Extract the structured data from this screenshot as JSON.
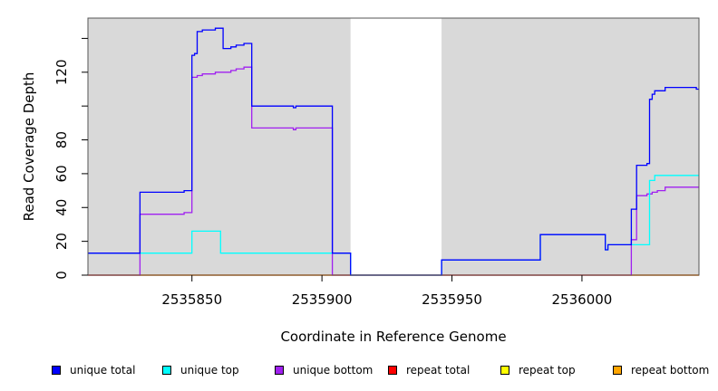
{
  "chart_data": {
    "type": "line",
    "title": "",
    "xlabel": "Coordinate in Reference Genome",
    "ylabel": "Read Coverage Depth",
    "xlim": [
      2535810,
      2536045
    ],
    "ylim": [
      0,
      152
    ],
    "x_ticks": [
      2535850,
      2535900,
      2535950,
      2536000
    ],
    "x_tick_labels": [
      "2535850",
      "2535900",
      "2535950",
      "2536000"
    ],
    "y_ticks": [
      0,
      20,
      40,
      60,
      80,
      100,
      120,
      140
    ],
    "y_tick_labels": [
      "0",
      "20",
      "40",
      "60",
      "80",
      "",
      "120",
      ""
    ],
    "background_regions": [
      {
        "from": 2535810,
        "to": 2535911,
        "color": "#d9d9d9"
      },
      {
        "from": 2535946,
        "to": 2536045,
        "color": "#d9d9d9"
      }
    ],
    "series": [
      {
        "name": "unique total",
        "color": "#0000ff",
        "points": [
          [
            2535810,
            13
          ],
          [
            2535830,
            13
          ],
          [
            2535830,
            49
          ],
          [
            2535847,
            49
          ],
          [
            2535847,
            50
          ],
          [
            2535850,
            50
          ],
          [
            2535850,
            130
          ],
          [
            2535851,
            130
          ],
          [
            2535851,
            131
          ],
          [
            2535852,
            131
          ],
          [
            2535852,
            144
          ],
          [
            2535854,
            144
          ],
          [
            2535854,
            145
          ],
          [
            2535859,
            145
          ],
          [
            2535859,
            146
          ],
          [
            2535862,
            146
          ],
          [
            2535862,
            134
          ],
          [
            2535865,
            134
          ],
          [
            2535865,
            135
          ],
          [
            2535867,
            135
          ],
          [
            2535867,
            136
          ],
          [
            2535870,
            136
          ],
          [
            2535870,
            137
          ],
          [
            2535873,
            137
          ],
          [
            2535873,
            100
          ],
          [
            2535889,
            100
          ],
          [
            2535889,
            99
          ],
          [
            2535890,
            99
          ],
          [
            2535890,
            100
          ],
          [
            2535904,
            100
          ],
          [
            2535904,
            13
          ],
          [
            2535911,
            13
          ],
          [
            2535911,
            0
          ],
          [
            2535946,
            0
          ],
          [
            2535946,
            9
          ],
          [
            2535984,
            9
          ],
          [
            2535984,
            24
          ],
          [
            2536009,
            24
          ],
          [
            2536009,
            15
          ],
          [
            2536010,
            15
          ],
          [
            2536010,
            18
          ],
          [
            2536019,
            18
          ],
          [
            2536019,
            39
          ],
          [
            2536021,
            39
          ],
          [
            2536021,
            65
          ],
          [
            2536025,
            65
          ],
          [
            2536025,
            66
          ],
          [
            2536026,
            66
          ],
          [
            2536026,
            104
          ],
          [
            2536027,
            104
          ],
          [
            2536027,
            107
          ],
          [
            2536028,
            107
          ],
          [
            2536028,
            109
          ],
          [
            2536032,
            109
          ],
          [
            2536032,
            111
          ],
          [
            2536044,
            111
          ],
          [
            2536044,
            110
          ],
          [
            2536045,
            110
          ]
        ]
      },
      {
        "name": "unique top",
        "color": "#00ffff",
        "points": [
          [
            2535810,
            13
          ],
          [
            2535850,
            13
          ],
          [
            2535850,
            26
          ],
          [
            2535861,
            26
          ],
          [
            2535861,
            13
          ],
          [
            2535904,
            13
          ],
          [
            2535904,
            13
          ],
          [
            2535911,
            13
          ],
          [
            2535911,
            0
          ],
          [
            2535946,
            0
          ],
          [
            2535946,
            9
          ],
          [
            2535984,
            9
          ],
          [
            2535984,
            24
          ],
          [
            2536009,
            24
          ],
          [
            2536009,
            15
          ],
          [
            2536010,
            15
          ],
          [
            2536010,
            18
          ],
          [
            2536026,
            18
          ],
          [
            2536026,
            56
          ],
          [
            2536028,
            56
          ],
          [
            2536028,
            59
          ],
          [
            2536045,
            59
          ]
        ]
      },
      {
        "name": "unique bottom",
        "color": "#a020f0",
        "points": [
          [
            2535810,
            0
          ],
          [
            2535830,
            0
          ],
          [
            2535830,
            36
          ],
          [
            2535847,
            36
          ],
          [
            2535847,
            37
          ],
          [
            2535850,
            37
          ],
          [
            2535850,
            117
          ],
          [
            2535852,
            117
          ],
          [
            2535852,
            118
          ],
          [
            2535854,
            118
          ],
          [
            2535854,
            119
          ],
          [
            2535859,
            119
          ],
          [
            2535859,
            120
          ],
          [
            2535865,
            120
          ],
          [
            2535865,
            121
          ],
          [
            2535867,
            121
          ],
          [
            2535867,
            122
          ],
          [
            2535870,
            122
          ],
          [
            2535870,
            123
          ],
          [
            2535873,
            123
          ],
          [
            2535873,
            87
          ],
          [
            2535889,
            87
          ],
          [
            2535889,
            86
          ],
          [
            2535890,
            86
          ],
          [
            2535890,
            87
          ],
          [
            2535904,
            87
          ],
          [
            2535904,
            0
          ],
          [
            2536019,
            0
          ],
          [
            2536019,
            21
          ],
          [
            2536021,
            21
          ],
          [
            2536021,
            47
          ],
          [
            2536025,
            47
          ],
          [
            2536025,
            48
          ],
          [
            2536027,
            48
          ],
          [
            2536027,
            49
          ],
          [
            2536029,
            49
          ],
          [
            2536029,
            50
          ],
          [
            2536032,
            50
          ],
          [
            2536032,
            52
          ],
          [
            2536045,
            52
          ]
        ]
      },
      {
        "name": "repeat total",
        "color": "#ff0000",
        "points": [
          [
            2535810,
            0
          ],
          [
            2536045,
            0
          ]
        ]
      },
      {
        "name": "repeat top",
        "color": "#ffff00",
        "points": [
          [
            2535810,
            0
          ],
          [
            2536045,
            0
          ]
        ]
      },
      {
        "name": "repeat bottom",
        "color": "#ffa500",
        "points": [
          [
            2535810,
            0
          ],
          [
            2536045,
            0
          ]
        ]
      }
    ],
    "legend_placement": "bottom",
    "grid": false
  }
}
